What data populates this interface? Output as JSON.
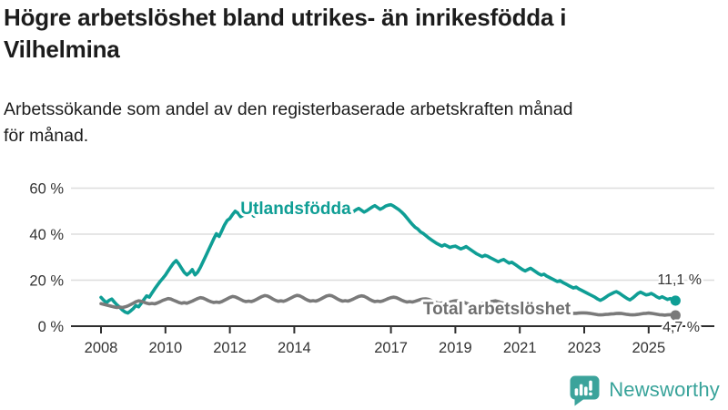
{
  "header": {
    "title_lines": [
      "Högre arbetslöshet bland utrikes- än inrikesfödda i",
      "Vilhelmina"
    ],
    "subtitle_lines": [
      "Arbetssökande som andel av den registerbaserade arbetskraften månad",
      "för månad."
    ]
  },
  "footer": {
    "brand": "Newsworthy",
    "brand_color": "#38a39a"
  },
  "chart_data": {
    "type": "line",
    "title": "Högre arbetslöshet bland utrikes- än inrikesfödda i Vilhelmina",
    "subtitle": "Arbetssökande som andel av den registerbaserade arbetskraften månad för månad.",
    "x_unit": "month",
    "x_start_year": 2008,
    "x_end_year": 2025.92,
    "x_tick_years": [
      2008,
      2010,
      2012,
      2014,
      2017,
      2019,
      2021,
      2023,
      2025
    ],
    "x_tick_labels": [
      "2008",
      "2010",
      "2012",
      "2014",
      "2017",
      "2019",
      "2021",
      "2023",
      "2025"
    ],
    "y_ticks": [
      0,
      20,
      40,
      60
    ],
    "y_tick_labels": [
      "0 %",
      "20 %",
      "40 %",
      "60 %"
    ],
    "ylim": [
      0,
      63
    ],
    "grid": true,
    "legend_position": "inline-labels",
    "colors": {
      "utlandsfodda": "#0f9e95",
      "total": "#7a7a7a",
      "grid": "#dddddd",
      "axis": "#2e2e2e",
      "text": "#333333"
    },
    "series": [
      {
        "name": "Utlandsfödda",
        "color": "#0f9e95",
        "end_value_label": "11,1 %",
        "end_value": 11.1,
        "values": [
          12.5,
          11.3,
          10.2,
          11.2,
          11.8,
          10.4,
          9.2,
          8.2,
          7.0,
          6.1,
          5.7,
          6.6,
          7.6,
          9.0,
          8.4,
          10.0,
          11.6,
          13.2,
          12.6,
          14.4,
          16.2,
          17.8,
          19.4,
          20.8,
          22.2,
          24.0,
          25.8,
          27.4,
          28.5,
          27.0,
          25.2,
          23.4,
          22.3,
          23.2,
          24.6,
          22.3,
          23.5,
          25.5,
          28.0,
          30.5,
          33.0,
          35.5,
          38.0,
          40.2,
          39.0,
          41.5,
          44.0,
          46.0,
          46.8,
          48.5,
          50.0,
          49.2,
          47.6,
          48.2,
          49.5,
          50.3,
          49.0,
          47.8,
          48.8,
          49.8,
          50.2,
          49.4,
          48.6,
          49.2,
          50.0,
          49.3,
          48.5,
          49.0,
          49.8,
          50.4,
          49.6,
          48.8,
          49.4,
          50.2,
          50.8,
          50.0,
          49.2,
          48.6,
          49.2,
          50.0,
          50.6,
          49.8,
          49.0,
          49.6,
          50.4,
          51.0,
          50.2,
          49.4,
          48.8,
          49.4,
          50.2,
          50.8,
          50.0,
          49.2,
          49.8,
          50.6,
          51.2,
          50.4,
          49.6,
          50.2,
          51.0,
          51.8,
          52.4,
          51.6,
          50.8,
          51.4,
          52.2,
          52.6,
          52.8,
          52.2,
          51.4,
          50.6,
          49.6,
          48.4,
          47.0,
          45.6,
          44.2,
          43.0,
          42.2,
          41.0,
          40.3,
          39.4,
          38.4,
          37.6,
          36.8,
          36.0,
          35.4,
          34.8,
          35.4,
          34.8,
          34.2,
          34.6,
          34.8,
          34.2,
          33.6,
          34.0,
          34.6,
          33.8,
          33.0,
          32.2,
          31.4,
          30.8,
          30.2,
          30.8,
          30.4,
          29.8,
          29.2,
          28.6,
          28.0,
          28.6,
          29.0,
          28.2,
          27.4,
          27.8,
          27.0,
          26.2,
          25.4,
          24.6,
          24.0,
          24.6,
          25.2,
          24.4,
          23.6,
          22.8,
          22.2,
          22.6,
          21.8,
          21.2,
          20.6,
          20.0,
          19.4,
          19.8,
          19.0,
          18.4,
          17.8,
          17.2,
          16.6,
          17.0,
          16.2,
          15.6,
          15.0,
          14.4,
          13.8,
          13.2,
          12.6,
          11.8,
          11.2,
          11.8,
          12.6,
          13.4,
          14.0,
          14.6,
          15.0,
          14.4,
          13.6,
          12.8,
          12.0,
          11.4,
          12.2,
          13.2,
          14.2,
          14.8,
          14.2,
          13.6,
          13.8,
          14.2,
          13.6,
          12.8,
          12.2,
          12.8,
          12.2,
          11.6,
          12.0,
          11.6,
          11.1
        ]
      },
      {
        "name": "Total arbetslöshet",
        "color": "#7a7a7a",
        "end_value_label": "4,7 %",
        "end_value": 4.7,
        "values": [
          9.8,
          9.5,
          9.2,
          8.9,
          8.6,
          8.3,
          8.1,
          8.3,
          8.1,
          8.4,
          8.8,
          9.4,
          10.0,
          10.6,
          11.0,
          10.8,
          10.4,
          10.0,
          9.7,
          9.9,
          9.7,
          10.1,
          10.6,
          11.2,
          11.6,
          12.0,
          11.8,
          11.3,
          10.8,
          10.3,
          10.0,
          10.2,
          10.0,
          10.4,
          10.9,
          11.5,
          12.0,
          12.4,
          12.2,
          11.7,
          11.1,
          10.6,
          10.3,
          10.5,
          10.3,
          10.7,
          11.3,
          11.9,
          12.5,
          12.9,
          12.7,
          12.2,
          11.6,
          11.0,
          10.7,
          10.9,
          10.7,
          11.1,
          11.7,
          12.3,
          12.9,
          13.3,
          13.1,
          12.5,
          11.8,
          11.2,
          10.8,
          11.0,
          10.8,
          11.2,
          11.8,
          12.4,
          13.0,
          13.4,
          13.2,
          12.6,
          11.9,
          11.3,
          10.9,
          11.1,
          10.9,
          11.3,
          11.9,
          12.5,
          13.1,
          13.4,
          13.2,
          12.6,
          11.9,
          11.3,
          10.9,
          11.1,
          10.9,
          11.3,
          11.8,
          12.4,
          12.9,
          13.2,
          13.0,
          12.4,
          11.7,
          11.1,
          10.7,
          10.9,
          10.7,
          11.0,
          11.5,
          12.0,
          12.4,
          12.6,
          12.4,
          11.9,
          11.3,
          10.8,
          10.5,
          10.7,
          10.5,
          10.8,
          11.2,
          11.6,
          11.8,
          11.9,
          11.7,
          11.2,
          10.7,
          10.2,
          9.9,
          10.1,
          9.9,
          10.2,
          10.5,
          10.8,
          11.0,
          11.1,
          10.9,
          10.5,
          10.0,
          9.6,
          9.3,
          9.5,
          9.3,
          9.6,
          9.9,
          10.2,
          10.4,
          10.6,
          10.8,
          11.0,
          10.7,
          10.3,
          10.0,
          9.8,
          9.6,
          9.4,
          9.2,
          9.0,
          8.9,
          8.8,
          8.6,
          8.4,
          8.1,
          7.8,
          7.6,
          7.4,
          7.2,
          7.0,
          6.9,
          6.8,
          6.7,
          6.6,
          6.4,
          6.2,
          6.0,
          5.9,
          5.8,
          5.7,
          5.6,
          5.6,
          5.7,
          5.8,
          5.8,
          5.7,
          5.6,
          5.4,
          5.2,
          5.0,
          4.9,
          5.0,
          5.1,
          5.2,
          5.3,
          5.4,
          5.5,
          5.6,
          5.5,
          5.3,
          5.1,
          5.0,
          4.9,
          5.0,
          5.1,
          5.3,
          5.5,
          5.6,
          5.7,
          5.6,
          5.4,
          5.2,
          5.0,
          4.9,
          4.8,
          4.9,
          5.0,
          4.8,
          4.7
        ]
      }
    ]
  }
}
